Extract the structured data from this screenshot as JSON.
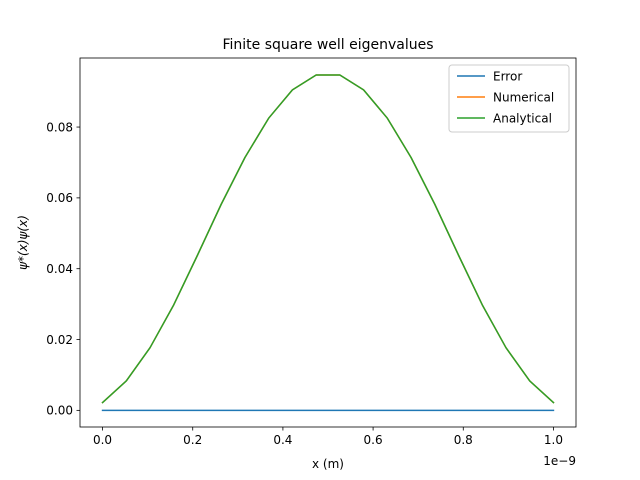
{
  "chart_data": {
    "type": "line",
    "title": "Finite square well eigenvalues",
    "xlabel": "x (m)",
    "ylabel": "ψ*(x)ψ(x)",
    "x_offset_text": "1e−9",
    "xlim": [
      -0.05,
      1.05
    ],
    "ylim": [
      -0.0047,
      0.0995
    ],
    "x_ticks": [
      0.0,
      0.2,
      0.4,
      0.6,
      0.8,
      1.0
    ],
    "x_tick_labels": [
      "0.0",
      "0.2",
      "0.4",
      "0.6",
      "0.8",
      "1.0"
    ],
    "y_ticks": [
      0.0,
      0.02,
      0.04,
      0.06,
      0.08
    ],
    "y_tick_labels": [
      "0.00",
      "0.02",
      "0.04",
      "0.06",
      "0.08"
    ],
    "grid": false,
    "legend_position": "top-right",
    "x": [
      0.0,
      0.0526,
      0.1053,
      0.1579,
      0.2105,
      0.2632,
      0.3158,
      0.3684,
      0.4211,
      0.4737,
      0.5263,
      0.5789,
      0.6316,
      0.6842,
      0.7368,
      0.7895,
      0.8421,
      0.8947,
      0.9474,
      1.0
    ],
    "series": [
      {
        "name": "Error",
        "color": "#1f77b4",
        "values": [
          0,
          0,
          0,
          0,
          0,
          0,
          0,
          0,
          0,
          0,
          0,
          0,
          0,
          0,
          0,
          0,
          0,
          0,
          0,
          0
        ]
      },
      {
        "name": "Numerical",
        "color": "#ff7f0e",
        "values": [
          0.0022,
          0.0083,
          0.0177,
          0.0298,
          0.0438,
          0.0582,
          0.0714,
          0.0825,
          0.0905,
          0.0947,
          0.0947,
          0.0905,
          0.0825,
          0.0714,
          0.0582,
          0.0438,
          0.0298,
          0.0177,
          0.0083,
          0.0022
        ]
      },
      {
        "name": "Analytical",
        "color": "#2ca02c",
        "values": [
          0.0022,
          0.0083,
          0.0177,
          0.0298,
          0.0438,
          0.0582,
          0.0714,
          0.0825,
          0.0905,
          0.0947,
          0.0947,
          0.0905,
          0.0825,
          0.0714,
          0.0582,
          0.0438,
          0.0298,
          0.0177,
          0.0083,
          0.0022
        ]
      }
    ]
  }
}
